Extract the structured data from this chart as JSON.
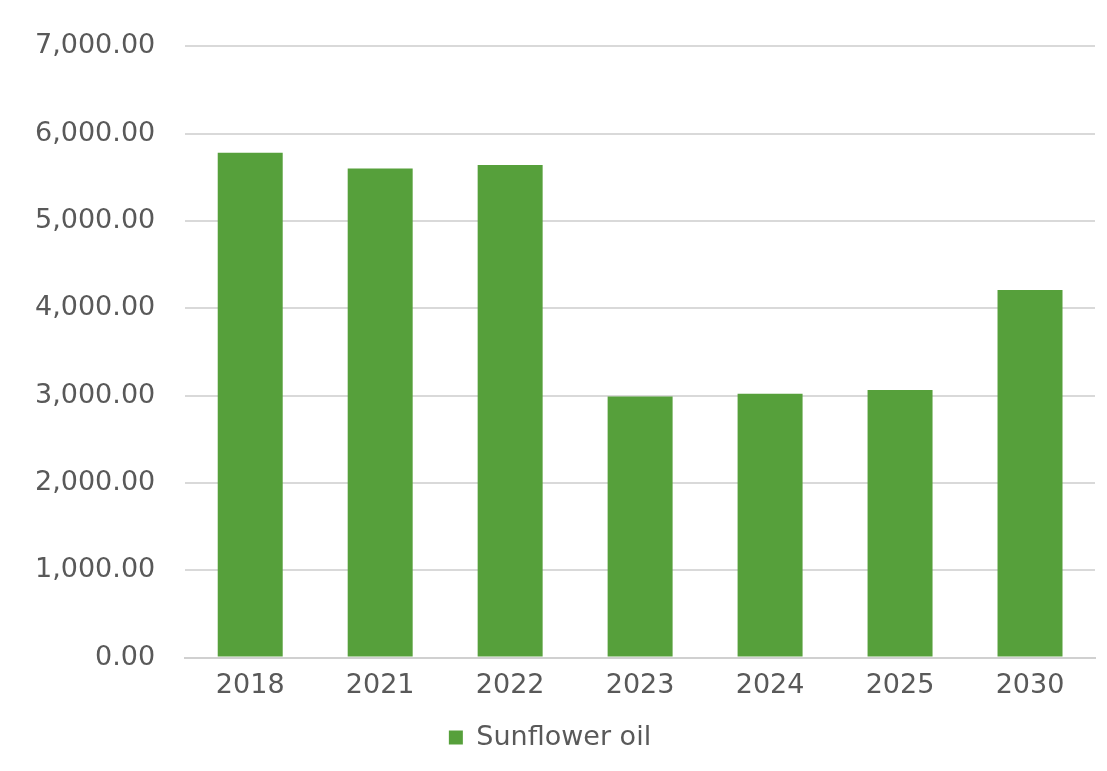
{
  "chart_data": {
    "type": "bar",
    "categories": [
      "2018",
      "2021",
      "2022",
      "2023",
      "2024",
      "2025",
      "2030"
    ],
    "series": [
      {
        "name": "Sunflower oil",
        "color": "#56a03b",
        "values": [
          5780,
          5600,
          5640,
          2990,
          3020,
          3065,
          4210
        ]
      }
    ],
    "ylim": [
      0,
      7000
    ],
    "yticks": [
      {
        "value": 0,
        "label": "0.00"
      },
      {
        "value": 1000,
        "label": "1,000.00"
      },
      {
        "value": 2000,
        "label": "2,000.00"
      },
      {
        "value": 3000,
        "label": "3,000.00"
      },
      {
        "value": 4000,
        "label": "4,000.00"
      },
      {
        "value": 5000,
        "label": "5,000.00"
      },
      {
        "value": 6000,
        "label": "6,000.00"
      },
      {
        "value": 7000,
        "label": "7,000.00"
      }
    ],
    "grid": "y",
    "legend": "bottom"
  }
}
